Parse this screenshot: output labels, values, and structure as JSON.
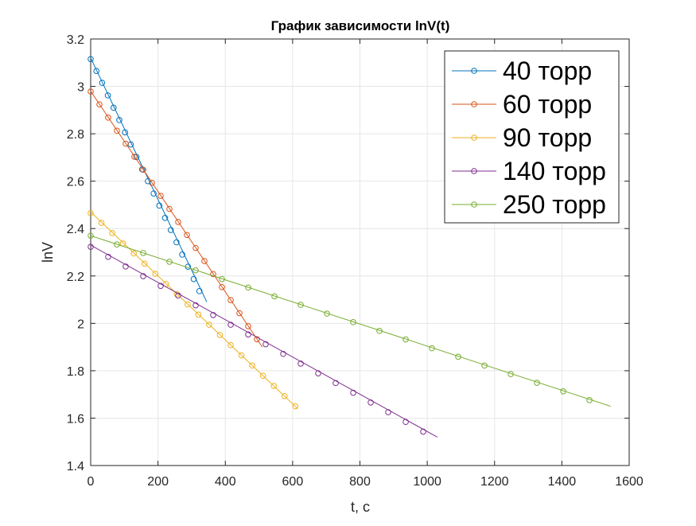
{
  "chart_data": {
    "type": "line",
    "title": "График зависимости lnV(t)",
    "xlabel": "t, c",
    "ylabel": "lnV",
    "xlim": [
      0,
      1600
    ],
    "ylim": [
      1.4,
      3.2
    ],
    "xticks": [
      "0",
      "200",
      "400",
      "600",
      "800",
      "1000",
      "1200",
      "1400",
      "1600"
    ],
    "yticks": [
      "1.4",
      "1.6",
      "1.8",
      "2",
      "2.2",
      "2.4",
      "2.6",
      "2.8",
      "3",
      "3.2"
    ],
    "grid": true,
    "legend": "top-right",
    "series": [
      {
        "name": "40 торр",
        "color": "#0072BD",
        "fit": [
          [
            0,
            3.12
          ],
          [
            345,
            2.09
          ]
        ],
        "points": [
          [
            0,
            3.115
          ],
          [
            17,
            3.065
          ],
          [
            34,
            3.015
          ],
          [
            51,
            2.962
          ],
          [
            68,
            2.91
          ],
          [
            85,
            2.858
          ],
          [
            102,
            2.806
          ],
          [
            119,
            2.755
          ],
          [
            136,
            2.702
          ],
          [
            153,
            2.65
          ],
          [
            170,
            2.6
          ],
          [
            187,
            2.548
          ],
          [
            204,
            2.497
          ],
          [
            221,
            2.445
          ],
          [
            238,
            2.394
          ],
          [
            255,
            2.342
          ],
          [
            272,
            2.29
          ],
          [
            289,
            2.239
          ],
          [
            306,
            2.187
          ],
          [
            323,
            2.136
          ]
        ]
      },
      {
        "name": "60 торр",
        "color": "#D95319",
        "fit": [
          [
            0,
            2.98
          ],
          [
            510,
            1.9
          ]
        ],
        "points": [
          [
            0,
            2.978
          ],
          [
            26,
            2.924
          ],
          [
            52,
            2.868
          ],
          [
            78,
            2.813
          ],
          [
            104,
            2.758
          ],
          [
            130,
            2.703
          ],
          [
            156,
            2.648
          ],
          [
            182,
            2.593
          ],
          [
            208,
            2.538
          ],
          [
            234,
            2.483
          ],
          [
            260,
            2.428
          ],
          [
            286,
            2.373
          ],
          [
            312,
            2.318
          ],
          [
            338,
            2.263
          ],
          [
            364,
            2.208
          ],
          [
            390,
            2.153
          ],
          [
            416,
            2.098
          ],
          [
            442,
            2.043
          ],
          [
            468,
            1.988
          ],
          [
            494,
            1.933
          ]
        ]
      },
      {
        "name": "90 торр",
        "color": "#EDB120",
        "fit": [
          [
            0,
            2.47
          ],
          [
            615,
            1.64
          ]
        ],
        "points": [
          [
            0,
            2.465
          ],
          [
            32,
            2.424
          ],
          [
            64,
            2.381
          ],
          [
            96,
            2.337
          ],
          [
            128,
            2.295
          ],
          [
            160,
            2.252
          ],
          [
            192,
            2.209
          ],
          [
            224,
            2.166
          ],
          [
            256,
            2.123
          ],
          [
            288,
            2.08
          ],
          [
            320,
            2.037
          ],
          [
            352,
            1.994
          ],
          [
            384,
            1.951
          ],
          [
            416,
            1.908
          ],
          [
            448,
            1.865
          ],
          [
            480,
            1.822
          ],
          [
            512,
            1.779
          ],
          [
            544,
            1.736
          ],
          [
            576,
            1.693
          ],
          [
            608,
            1.65
          ]
        ]
      },
      {
        "name": "140 торр",
        "color": "#7E2F8E",
        "fit": [
          [
            0,
            2.33
          ],
          [
            1030,
            1.52
          ]
        ],
        "points": [
          [
            0,
            2.323
          ],
          [
            52,
            2.281
          ],
          [
            104,
            2.24
          ],
          [
            156,
            2.199
          ],
          [
            208,
            2.158
          ],
          [
            260,
            2.117
          ],
          [
            312,
            2.076
          ],
          [
            364,
            2.035
          ],
          [
            416,
            1.994
          ],
          [
            468,
            1.953
          ],
          [
            520,
            1.912
          ],
          [
            572,
            1.871
          ],
          [
            624,
            1.83
          ],
          [
            676,
            1.789
          ],
          [
            728,
            1.748
          ],
          [
            780,
            1.707
          ],
          [
            832,
            1.666
          ],
          [
            884,
            1.625
          ],
          [
            936,
            1.584
          ],
          [
            988,
            1.543
          ]
        ]
      },
      {
        "name": "250 торр",
        "color": "#77AC30",
        "fit": [
          [
            0,
            2.37
          ],
          [
            1545,
            1.65
          ]
        ],
        "points": [
          [
            0,
            2.37
          ],
          [
            78,
            2.333
          ],
          [
            156,
            2.297
          ],
          [
            234,
            2.26
          ],
          [
            312,
            2.224
          ],
          [
            390,
            2.187
          ],
          [
            468,
            2.151
          ],
          [
            546,
            2.114
          ],
          [
            624,
            2.078
          ],
          [
            702,
            2.041
          ],
          [
            780,
            2.005
          ],
          [
            858,
            1.968
          ],
          [
            936,
            1.932
          ],
          [
            1014,
            1.895
          ],
          [
            1092,
            1.859
          ],
          [
            1170,
            1.822
          ],
          [
            1248,
            1.786
          ],
          [
            1326,
            1.749
          ],
          [
            1404,
            1.713
          ],
          [
            1482,
            1.676
          ]
        ]
      }
    ]
  }
}
